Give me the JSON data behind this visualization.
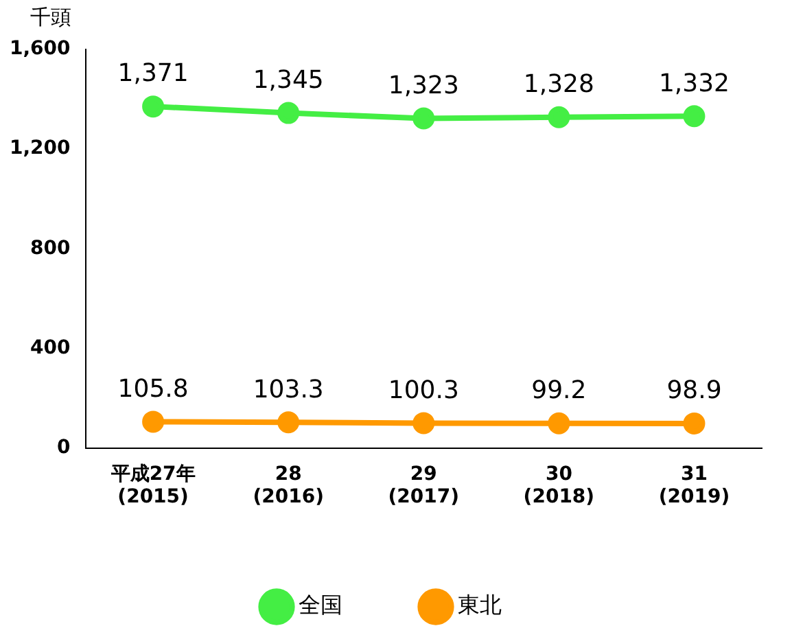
{
  "chart_data": {
    "type": "line",
    "ylabel": "千頭",
    "categories": [
      "平成27年\n(2015)",
      "28\n(2016)",
      "29\n(2017)",
      "30\n(2018)",
      "31\n(2019)"
    ],
    "series": [
      {
        "name": "全国",
        "color": "#44ee44",
        "values": [
          1371,
          1345,
          1323,
          1328,
          1332
        ],
        "value_labels": [
          "1,371",
          "1,345",
          "1,323",
          "1,328",
          "1,332"
        ]
      },
      {
        "name": "東北",
        "color": "#ff9900",
        "values": [
          105.8,
          103.3,
          100.3,
          99.2,
          98.9
        ],
        "value_labels": [
          "105.8",
          "103.3",
          "100.3",
          "99.2",
          "98.9"
        ]
      }
    ],
    "ylim": [
      0,
      1600
    ],
    "yticks": [
      0,
      {
        "value": 400,
        "label": "400"
      },
      {
        "value": 800,
        "label": "800"
      },
      {
        "value": 1200,
        "label": "1,200"
      },
      {
        "value": 1600,
        "label": "1,600"
      }
    ],
    "grid": false,
    "legend": "bottom",
    "marker": "circle",
    "line_style": "solid"
  }
}
